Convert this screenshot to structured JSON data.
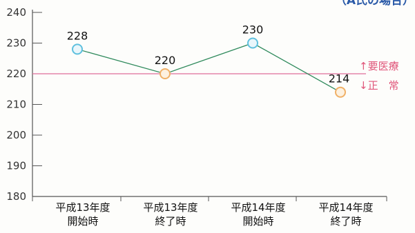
{
  "chart_data": {
    "type": "line",
    "title": "（A氏の場合）",
    "categories": [
      [
        "平成13年度",
        "開始時"
      ],
      [
        "平成13年度",
        "終了時"
      ],
      [
        "平成14年度",
        "開始時"
      ],
      [
        "平成14年度",
        "終了時"
      ]
    ],
    "values": [
      228,
      220,
      230,
      214
    ],
    "ylim": [
      180,
      240
    ],
    "yticks": [
      180,
      190,
      200,
      210,
      220,
      230,
      240
    ],
    "reference_line": {
      "value": 220,
      "color": "#e06c9a"
    },
    "reference_labels": {
      "above": "↑要医療",
      "below": "↓正　常"
    },
    "colors": {
      "line": "#2f8a5c",
      "marker_above": "#5ec0de",
      "marker_above_fill": "#e9f6fb",
      "marker_below": "#f0b067",
      "marker_below_fill": "#fdf1e0",
      "axis": "#555555",
      "title": "#2a5aa8"
    },
    "grid": false,
    "legend": "none"
  }
}
